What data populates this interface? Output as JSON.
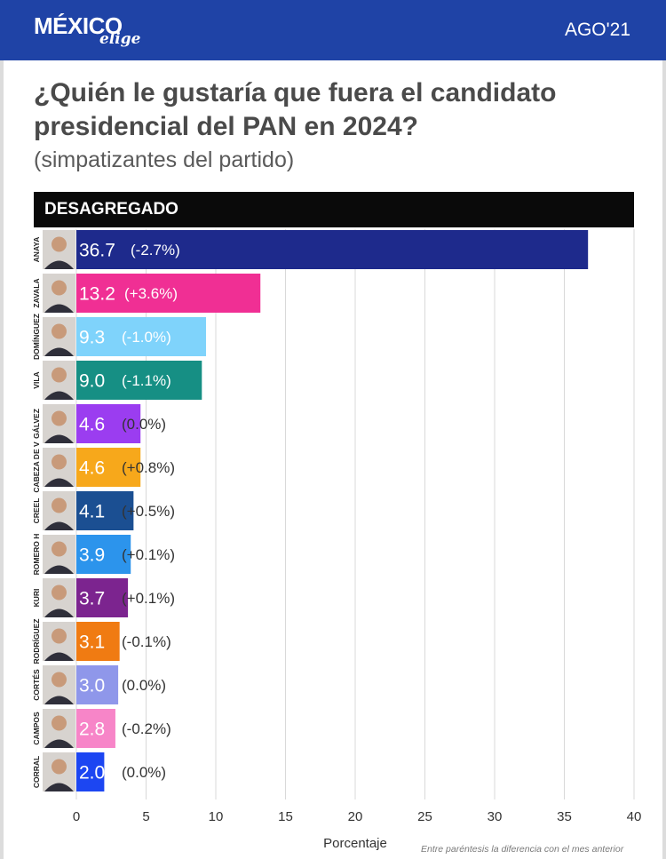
{
  "header": {
    "logo_main": "MÉXICO",
    "logo_sub": "elige",
    "period": "AGO'21",
    "colors": {
      "bar": "#1f43a6",
      "text": "#ffffff"
    }
  },
  "title": "¿Quién le gustaría que fuera el candidato presidencial del PAN en 2024?",
  "subtitle": "(simpatizantes del partido)",
  "band_label": "DESAGREGADO",
  "footnote": "Entre paréntesis la diferencia con el mes anterior",
  "chart_data": {
    "type": "bar",
    "orientation": "horizontal",
    "xlabel": "Porcentaje",
    "xlim": [
      0,
      40
    ],
    "xticks": [
      0,
      5,
      10,
      15,
      20,
      25,
      30,
      35,
      40
    ],
    "grid": true,
    "categories": [
      "ANAYA",
      "ZAVALA",
      "DOMÍNGUEZ",
      "VILA",
      "GÁLVEZ",
      "CABEZA DE V",
      "CREEL",
      "ROMERO H",
      "KURI",
      "RODRÍGUEZ",
      "CORTÉS",
      "CAMPOS",
      "CORRAL"
    ],
    "values": [
      36.7,
      13.2,
      9.3,
      9.0,
      4.6,
      4.6,
      4.1,
      3.9,
      3.7,
      3.1,
      3.0,
      2.8,
      2.0
    ],
    "value_labels": [
      "36.7",
      "13.2",
      "9.3",
      "9.0",
      "4.6",
      "4.6",
      "4.1",
      "3.9",
      "3.7",
      "3.1",
      "3.0",
      "2.8",
      "2.0"
    ],
    "changes": [
      "(-2.7%)",
      "(+3.6%)",
      "(-1.0%)",
      "(-1.1%)",
      "(0.0%)",
      "(+0.8%)",
      "(+0.5%)",
      "(+0.1%)",
      "(+0.1%)",
      "(-0.1%)",
      "(0.0%)",
      "(-0.2%)",
      "(0.0%)"
    ],
    "colors": [
      "#1e2a8c",
      "#f02f94",
      "#7fd3fb",
      "#168f84",
      "#9b3df0",
      "#f7a81b",
      "#1b4f92",
      "#2c94ec",
      "#7c248f",
      "#f07b12",
      "#8f97ea",
      "#f785c8",
      "#1c46f2"
    ]
  }
}
